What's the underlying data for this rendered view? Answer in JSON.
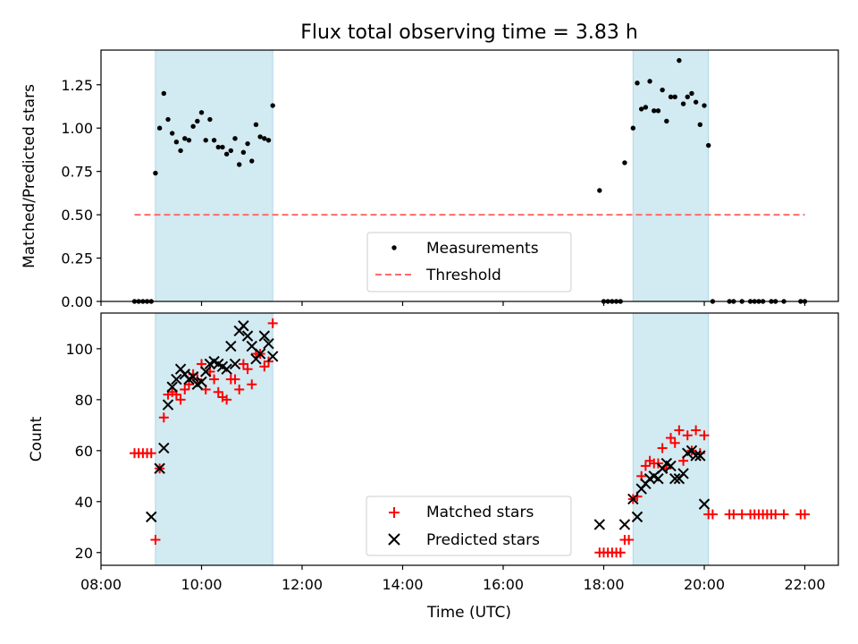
{
  "title": "Flux total observing time = 3.83 h",
  "colors": {
    "measurement": "#000000",
    "threshold": "#ff6b6b",
    "matched": "#ff0000",
    "predicted": "#000000",
    "shade": "#add8e6"
  },
  "chart_data": [
    {
      "type": "scatter",
      "ylabel": "Matched/Predicted stars",
      "ylim": [
        0,
        1.45
      ],
      "yticks": [
        {
          "v": 0.0,
          "label": "0.00"
        },
        {
          "v": 0.25,
          "label": "0.25"
        },
        {
          "v": 0.5,
          "label": "0.50"
        },
        {
          "v": 0.75,
          "label": "0.75"
        },
        {
          "v": 1.0,
          "label": "1.00"
        },
        {
          "v": 1.25,
          "label": "1.25"
        }
      ],
      "legend": {
        "position": "lower center",
        "entries": [
          "Measurements",
          "Threshold"
        ]
      },
      "threshold": {
        "name": "Threshold",
        "value": 0.5,
        "x_range": [
          "08:40",
          "22:00"
        ]
      },
      "shaded_intervals": [
        [
          "09:05",
          "11:25"
        ],
        [
          "18:35",
          "20:05"
        ]
      ],
      "series": [
        {
          "name": "Measurements",
          "marker": "dot",
          "points": [
            [
              "08:40",
              0
            ],
            [
              "08:45",
              0
            ],
            [
              "08:50",
              0
            ],
            [
              "08:55",
              0
            ],
            [
              "09:00",
              0
            ],
            [
              "09:05",
              0.74
            ],
            [
              "09:10",
              1.0
            ],
            [
              "09:15",
              1.2
            ],
            [
              "09:20",
              1.05
            ],
            [
              "09:25",
              0.97
            ],
            [
              "09:30",
              0.92
            ],
            [
              "09:35",
              0.87
            ],
            [
              "09:40",
              0.94
            ],
            [
              "09:45",
              0.93
            ],
            [
              "09:50",
              1.01
            ],
            [
              "09:55",
              1.04
            ],
            [
              "10:00",
              1.09
            ],
            [
              "10:05",
              0.93
            ],
            [
              "10:10",
              1.05
            ],
            [
              "10:15",
              0.93
            ],
            [
              "10:20",
              0.89
            ],
            [
              "10:25",
              0.89
            ],
            [
              "10:30",
              0.85
            ],
            [
              "10:35",
              0.87
            ],
            [
              "10:40",
              0.94
            ],
            [
              "10:45",
              0.79
            ],
            [
              "10:50",
              0.86
            ],
            [
              "10:55",
              0.91
            ],
            [
              "11:00",
              0.81
            ],
            [
              "11:05",
              1.02
            ],
            [
              "11:10",
              0.95
            ],
            [
              "11:15",
              0.94
            ],
            [
              "11:20",
              0.93
            ],
            [
              "11:25",
              1.13
            ],
            [
              "17:55",
              0.64
            ],
            [
              "18:00",
              0
            ],
            [
              "18:05",
              0
            ],
            [
              "18:10",
              0
            ],
            [
              "18:15",
              0
            ],
            [
              "18:20",
              0
            ],
            [
              "18:25",
              0.8
            ],
            [
              "18:35",
              1.0
            ],
            [
              "18:40",
              1.26
            ],
            [
              "18:45",
              1.11
            ],
            [
              "18:50",
              1.12
            ],
            [
              "18:55",
              1.27
            ],
            [
              "19:00",
              1.1
            ],
            [
              "19:05",
              1.1
            ],
            [
              "19:10",
              1.22
            ],
            [
              "19:15",
              1.04
            ],
            [
              "19:20",
              1.18
            ],
            [
              "19:25",
              1.18
            ],
            [
              "19:30",
              1.39
            ],
            [
              "19:35",
              1.14
            ],
            [
              "19:40",
              1.18
            ],
            [
              "19:45",
              1.2
            ],
            [
              "19:50",
              1.15
            ],
            [
              "19:55",
              1.02
            ],
            [
              "20:00",
              1.13
            ],
            [
              "20:05",
              0.9
            ],
            [
              "20:10",
              0
            ],
            [
              "20:30",
              0
            ],
            [
              "20:35",
              0
            ],
            [
              "20:45",
              0
            ],
            [
              "20:55",
              0
            ],
            [
              "21:00",
              0
            ],
            [
              "21:05",
              0
            ],
            [
              "21:10",
              0
            ],
            [
              "21:20",
              0
            ],
            [
              "21:25",
              0
            ],
            [
              "21:35",
              0
            ],
            [
              "21:55",
              0
            ],
            [
              "22:00",
              0
            ]
          ]
        }
      ]
    },
    {
      "type": "scatter",
      "xlabel": "Time (UTC)",
      "ylabel": "Count",
      "xlim": [
        "08:00",
        "22:40"
      ],
      "ylim": [
        15,
        114
      ],
      "xticks": [
        "08:00",
        "10:00",
        "12:00",
        "14:00",
        "16:00",
        "18:00",
        "20:00",
        "22:00"
      ],
      "yticks": [
        20,
        40,
        60,
        80,
        100
      ],
      "legend": {
        "position": "lower center",
        "entries": [
          "Matched stars",
          "Predicted stars"
        ]
      },
      "shaded_intervals": [
        [
          "09:05",
          "11:25"
        ],
        [
          "18:35",
          "20:05"
        ]
      ],
      "series": [
        {
          "name": "Matched stars",
          "marker": "plus",
          "points": [
            [
              "08:40",
              59
            ],
            [
              "08:45",
              59
            ],
            [
              "08:50",
              59
            ],
            [
              "08:55",
              59
            ],
            [
              "09:00",
              59
            ],
            [
              "09:05",
              25
            ],
            [
              "09:10",
              53
            ],
            [
              "09:15",
              73
            ],
            [
              "09:20",
              82
            ],
            [
              "09:25",
              83
            ],
            [
              "09:30",
              82
            ],
            [
              "09:35",
              80
            ],
            [
              "09:40",
              84
            ],
            [
              "09:45",
              86
            ],
            [
              "09:50",
              90
            ],
            [
              "09:55",
              88
            ],
            [
              "10:00",
              94
            ],
            [
              "10:05",
              84
            ],
            [
              "10:10",
              91
            ],
            [
              "10:15",
              88
            ],
            [
              "10:20",
              83
            ],
            [
              "10:25",
              81
            ],
            [
              "10:30",
              80
            ],
            [
              "10:35",
              88
            ],
            [
              "10:40",
              88
            ],
            [
              "10:45",
              84
            ],
            [
              "10:50",
              94
            ],
            [
              "10:55",
              92
            ],
            [
              "11:00",
              86
            ],
            [
              "11:05",
              98
            ],
            [
              "11:10",
              98
            ],
            [
              "11:15",
              93
            ],
            [
              "11:20",
              95
            ],
            [
              "11:25",
              110
            ],
            [
              "17:55",
              20
            ],
            [
              "18:00",
              20
            ],
            [
              "18:05",
              20
            ],
            [
              "18:10",
              20
            ],
            [
              "18:15",
              20
            ],
            [
              "18:20",
              20
            ],
            [
              "18:25",
              25
            ],
            [
              "18:30",
              25
            ],
            [
              "18:35",
              41
            ],
            [
              "18:40",
              42
            ],
            [
              "18:45",
              50
            ],
            [
              "18:50",
              54
            ],
            [
              "18:55",
              56
            ],
            [
              "19:00",
              55
            ],
            [
              "19:05",
              55
            ],
            [
              "19:10",
              61
            ],
            [
              "19:15",
              53
            ],
            [
              "19:20",
              65
            ],
            [
              "19:25",
              63
            ],
            [
              "19:30",
              68
            ],
            [
              "19:35",
              56
            ],
            [
              "19:40",
              66
            ],
            [
              "19:45",
              60
            ],
            [
              "19:50",
              68
            ],
            [
              "19:55",
              59
            ],
            [
              "20:00",
              66
            ],
            [
              "20:05",
              35
            ],
            [
              "20:10",
              35
            ],
            [
              "20:30",
              35
            ],
            [
              "20:35",
              35
            ],
            [
              "20:45",
              35
            ],
            [
              "20:55",
              35
            ],
            [
              "21:00",
              35
            ],
            [
              "21:05",
              35
            ],
            [
              "21:10",
              35
            ],
            [
              "21:15",
              35
            ],
            [
              "21:20",
              35
            ],
            [
              "21:25",
              35
            ],
            [
              "21:35",
              35
            ],
            [
              "21:55",
              35
            ],
            [
              "22:00",
              35
            ]
          ]
        },
        {
          "name": "Predicted stars",
          "marker": "x",
          "points": [
            [
              "09:00",
              34
            ],
            [
              "09:10",
              53
            ],
            [
              "09:15",
              61
            ],
            [
              "09:20",
              78
            ],
            [
              "09:25",
              85
            ],
            [
              "09:30",
              88
            ],
            [
              "09:35",
              92
            ],
            [
              "09:40",
              90
            ],
            [
              "09:45",
              88
            ],
            [
              "09:50",
              89
            ],
            [
              "09:55",
              86
            ],
            [
              "10:00",
              87
            ],
            [
              "10:05",
              91
            ],
            [
              "10:10",
              94
            ],
            [
              "10:15",
              95
            ],
            [
              "10:20",
              94
            ],
            [
              "10:25",
              93
            ],
            [
              "10:30",
              92
            ],
            [
              "10:35",
              101
            ],
            [
              "10:40",
              94
            ],
            [
              "10:45",
              107
            ],
            [
              "10:50",
              109
            ],
            [
              "10:55",
              105
            ],
            [
              "11:00",
              101
            ],
            [
              "11:05",
              96
            ],
            [
              "11:10",
              98
            ],
            [
              "11:15",
              105
            ],
            [
              "11:20",
              102
            ],
            [
              "11:25",
              97
            ],
            [
              "17:55",
              31
            ],
            [
              "18:25",
              31
            ],
            [
              "18:40",
              34
            ],
            [
              "18:35",
              41
            ],
            [
              "18:45",
              45
            ],
            [
              "18:50",
              47
            ],
            [
              "18:55",
              49
            ],
            [
              "19:00",
              50
            ],
            [
              "19:05",
              49
            ],
            [
              "19:10",
              53
            ],
            [
              "19:15",
              55
            ],
            [
              "19:20",
              54
            ],
            [
              "19:25",
              49
            ],
            [
              "19:30",
              49
            ],
            [
              "19:35",
              51
            ],
            [
              "19:40",
              59
            ],
            [
              "19:45",
              60
            ],
            [
              "19:50",
              58
            ],
            [
              "19:55",
              58
            ],
            [
              "20:00",
              39
            ]
          ]
        }
      ]
    }
  ]
}
